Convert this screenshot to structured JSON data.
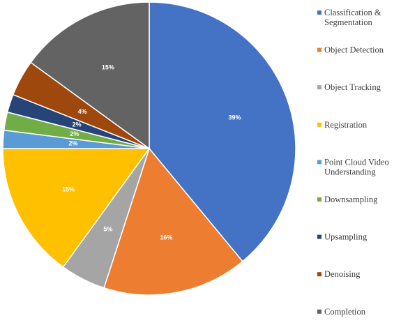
{
  "chart_data": {
    "type": "pie",
    "title": "",
    "legend_position": "right",
    "slices": [
      {
        "label": [
          "Classification &",
          "Segmentation"
        ],
        "value": 39,
        "value_label": "39%",
        "color": "#4472C4"
      },
      {
        "label": [
          "Object Detection"
        ],
        "value": 16,
        "value_label": "16%",
        "color": "#ED7D31"
      },
      {
        "label": [
          "Object Tracking"
        ],
        "value": 5,
        "value_label": "5%",
        "color": "#A5A5A5"
      },
      {
        "label": [
          "Registration"
        ],
        "value": 15,
        "value_label": "15%",
        "color": "#FFC000"
      },
      {
        "label": [
          "Point Cloud Video",
          "Understanding"
        ],
        "value": 2,
        "value_label": "2%",
        "color": "#5B9BD5"
      },
      {
        "label": [
          "Downsampling"
        ],
        "value": 2,
        "value_label": "2%",
        "color": "#70AD47"
      },
      {
        "label": [
          "Upsampling"
        ],
        "value": 2,
        "value_label": "2%",
        "color": "#264478"
      },
      {
        "label": [
          "Denoising"
        ],
        "value": 4,
        "value_label": "4%",
        "color": "#9E480E"
      },
      {
        "label": [
          "Completion"
        ],
        "value": 15,
        "value_label": "15%",
        "color": "#636363"
      }
    ]
  }
}
